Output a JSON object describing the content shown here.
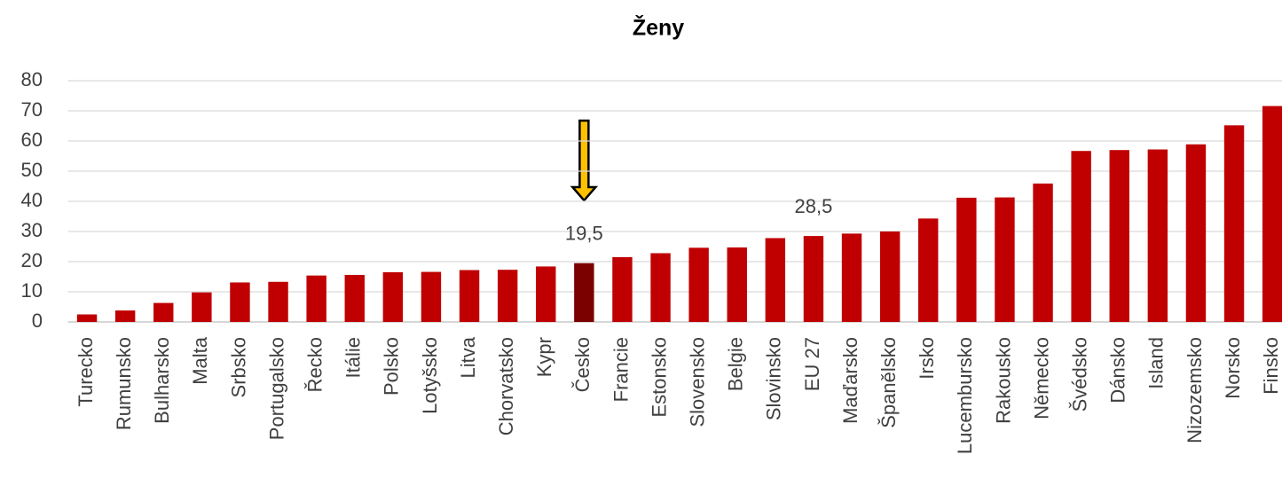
{
  "chart_data": {
    "type": "bar",
    "title": "Ženy",
    "categories": [
      "Turecko",
      "Rumunsko",
      "Bulharsko",
      "Malta",
      "Srbsko",
      "Portugalsko",
      "Řecko",
      "Itálie",
      "Polsko",
      "Lotyšsko",
      "Litva",
      "Chorvatsko",
      "Kypr",
      "Česko",
      "Francie",
      "Estonsko",
      "Slovensko",
      "Belgie",
      "Slovinsko",
      "EU 27",
      "Maďarsko",
      "Španělsko",
      "Irsko",
      "Lucembursko",
      "Rakousko",
      "Německo",
      "Švédsko",
      "Dánsko",
      "Island",
      "Nizozemsko",
      "Norsko",
      "Finsko"
    ],
    "values": [
      2.5,
      3.8,
      6.3,
      9.8,
      13.1,
      13.3,
      15.4,
      15.6,
      16.5,
      16.6,
      17.2,
      17.3,
      18.4,
      19.5,
      21.5,
      22.8,
      24.6,
      24.7,
      27.8,
      28.5,
      29.3,
      30.0,
      34.3,
      41.2,
      41.3,
      45.9,
      56.7,
      57.0,
      57.2,
      58.9,
      65.2,
      71.6
    ],
    "value_labels": [
      null,
      null,
      null,
      null,
      null,
      null,
      null,
      null,
      null,
      null,
      null,
      null,
      null,
      "19,5",
      null,
      null,
      null,
      null,
      null,
      "28,5",
      null,
      null,
      null,
      null,
      null,
      null,
      null,
      null,
      null,
      null,
      null,
      null
    ],
    "colors": [
      "#c00000",
      "#c00000",
      "#c00000",
      "#c00000",
      "#c00000",
      "#c00000",
      "#c00000",
      "#c00000",
      "#c00000",
      "#c00000",
      "#c00000",
      "#c00000",
      "#c00000",
      "#7b0000",
      "#c00000",
      "#c00000",
      "#c00000",
      "#c00000",
      "#c00000",
      "#c00000",
      "#c00000",
      "#c00000",
      "#c00000",
      "#c00000",
      "#c00000",
      "#c00000",
      "#c00000",
      "#c00000",
      "#c00000",
      "#c00000",
      "#c00000",
      "#c00000"
    ],
    "ylim": [
      0,
      80
    ],
    "yticks": [
      0,
      10,
      20,
      30,
      40,
      50,
      60,
      70,
      80
    ],
    "grid": true
  }
}
